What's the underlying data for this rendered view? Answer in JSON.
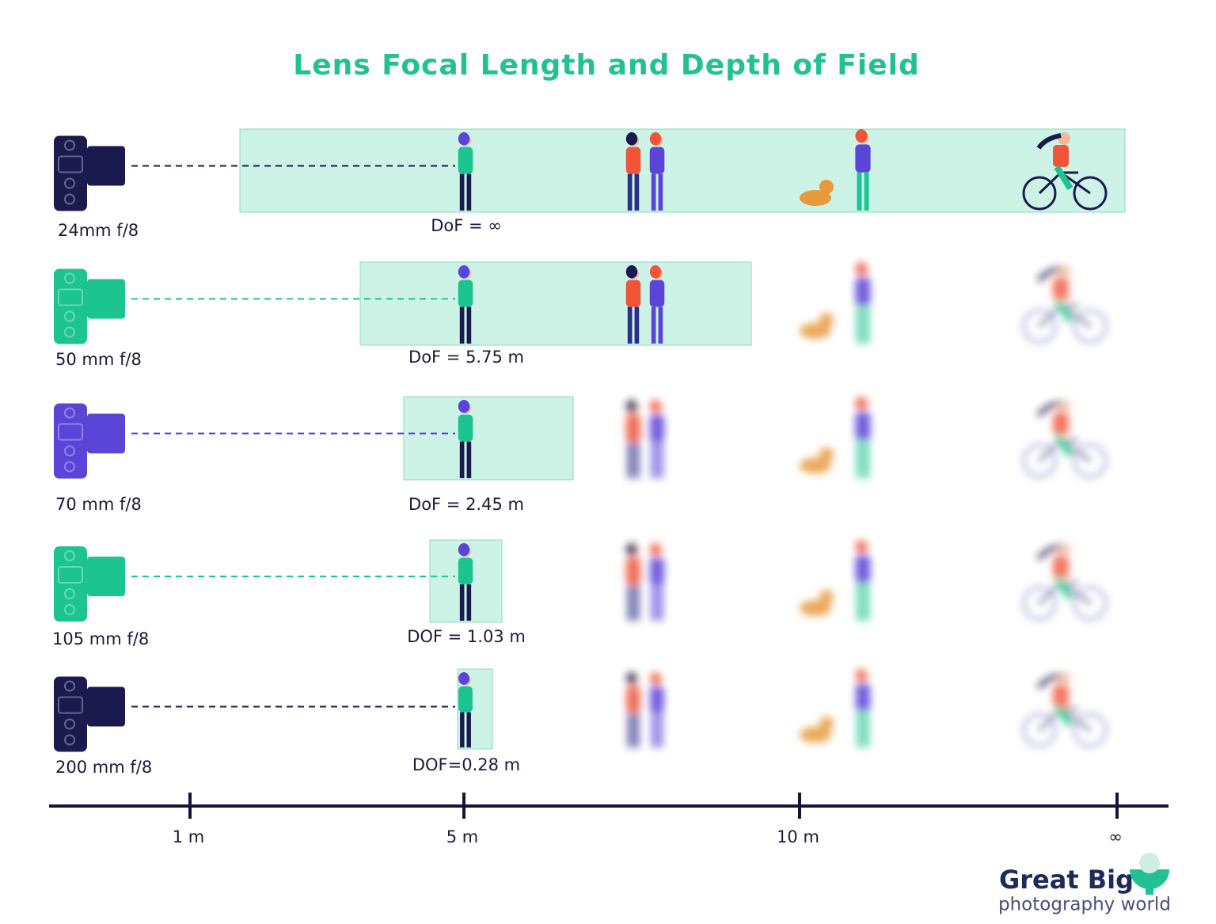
{
  "title": "Lens Focal Length and Depth of Field",
  "rows": [
    {
      "lens": "24mm f/8",
      "dof": "DoF = ∞"
    },
    {
      "lens": "50 mm f/8",
      "dof": "DoF = 5.75 m"
    },
    {
      "lens": "70 mm f/8",
      "dof": "DoF = 2.45 m"
    },
    {
      "lens": "105 mm f/8",
      "dof": "DOF = 1.03 m"
    },
    {
      "lens": "200 mm  f/8",
      "dof": "DOF=0.28 m"
    }
  ],
  "axis": {
    "labels": [
      "1 m",
      "5 m",
      "10 m",
      "∞"
    ]
  },
  "logo": {
    "brand": "Great Big",
    "tagline": "photography world"
  }
}
